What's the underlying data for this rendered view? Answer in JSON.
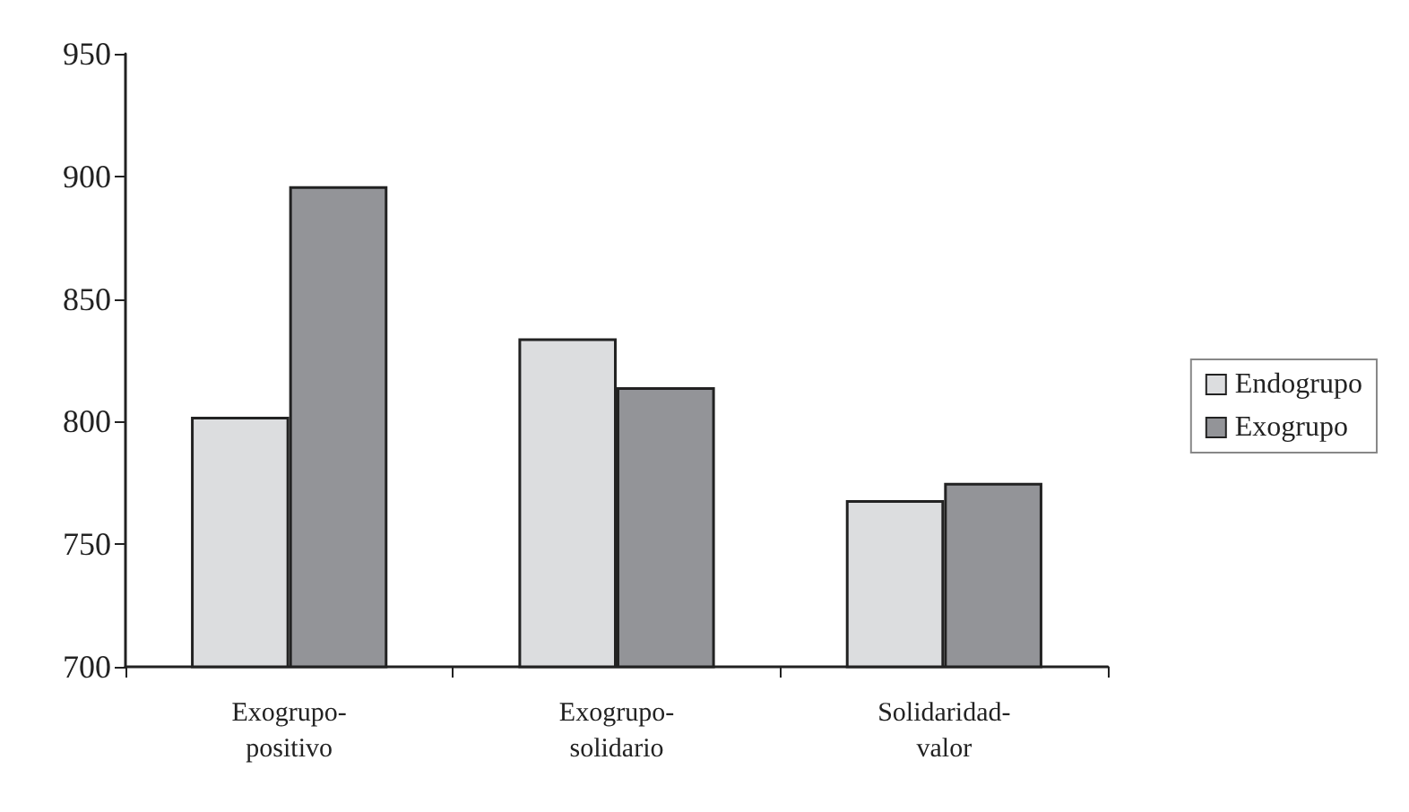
{
  "chart_data": {
    "type": "bar",
    "categories": [
      "Exogrupo-\npositivo",
      "Exogrupo-\nsolidario",
      "Solidaridad-\nvalor"
    ],
    "series": [
      {
        "name": "Endogrupo",
        "color": "#dcdddf",
        "values": [
          802,
          834,
          768
        ]
      },
      {
        "name": "Exogrupo",
        "color": "#939498",
        "values": [
          896,
          814,
          775
        ]
      }
    ],
    "ylim": [
      700,
      950
    ],
    "yticks": [
      700,
      750,
      800,
      850,
      900,
      950
    ],
    "grid": false,
    "legend": "right"
  }
}
